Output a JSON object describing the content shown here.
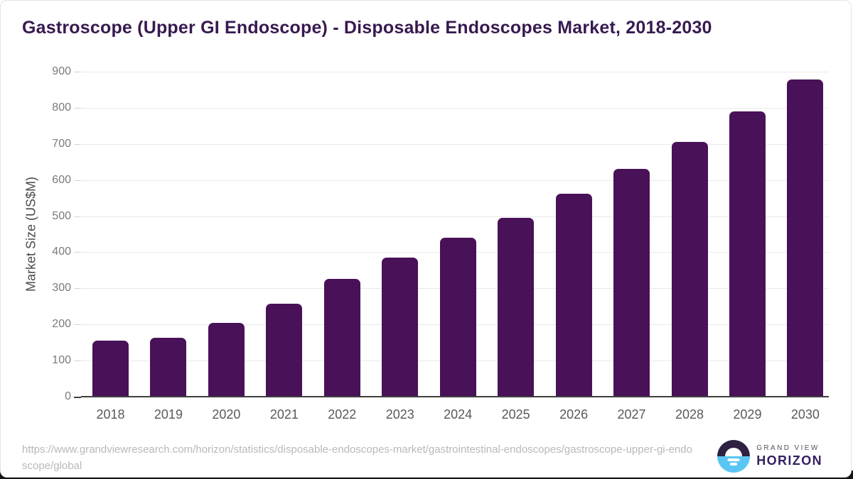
{
  "header": {
    "title": "Gastroscope (Upper GI Endoscope) - Disposable Endoscopes Market, 2018-2030"
  },
  "chart_data": {
    "type": "bar",
    "title": "Gastroscope (Upper GI Endoscope) - Disposable Endoscopes Market, 2018-2030",
    "categories": [
      "2018",
      "2019",
      "2020",
      "2021",
      "2022",
      "2023",
      "2024",
      "2025",
      "2026",
      "2027",
      "2028",
      "2029",
      "2030"
    ],
    "values": [
      155,
      163,
      204,
      257,
      326,
      386,
      440,
      496,
      562,
      631,
      706,
      790,
      878
    ],
    "xlabel": "",
    "ylabel": "Market Size (US$M)",
    "ylim": [
      0,
      900
    ],
    "yticks": [
      0,
      100,
      200,
      300,
      400,
      500,
      600,
      700,
      800,
      900
    ],
    "grid": "horizontal",
    "legend": "none",
    "bar_color": "#491158"
  },
  "footer": {
    "source_url": "https://www.grandviewresearch.com/horizon/statistics/disposable-endoscopes-market/gastrointestinal-endoscopes/gastroscope-upper-gi-endoscope/global",
    "logo": {
      "line1": "GRAND VIEW",
      "line2": "HORIZON",
      "icon": "horizon-sunrise-circle"
    }
  },
  "colors": {
    "bar": "#491158",
    "title": "#371a50",
    "grid": "#e9e9e9",
    "axis": "#3f3f3f",
    "y_tick_text": "#7a7a7a",
    "x_tick_text": "#595959",
    "url_text": "#b8b8b8",
    "logo_navy": "#2e2142",
    "logo_blue": "#5ac6f3",
    "logo_wordmark": "#342060"
  }
}
